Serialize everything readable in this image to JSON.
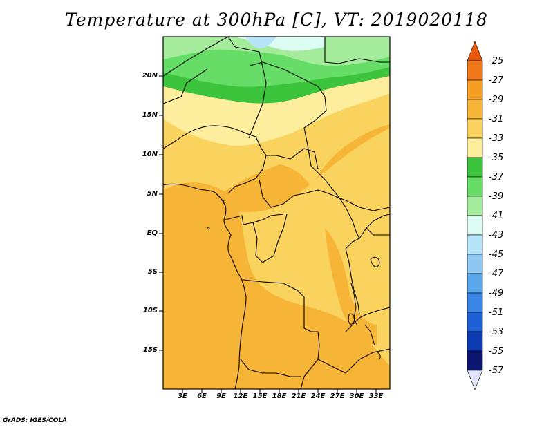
{
  "title": "Temperature at 300hPa [C], VT: 2019020118",
  "credit": "GrADS: IGES/COLA",
  "map": {
    "variable": "Temperature",
    "level": "300hPa",
    "units": "C",
    "valid_time": "2019020118",
    "lat_labels": [
      "20N",
      "15N",
      "10N",
      "5N",
      "EQ",
      "5S",
      "10S",
      "15S"
    ],
    "lon_labels": [
      "3E",
      "6E",
      "9E",
      "12E",
      "15E",
      "18E",
      "21E",
      "24E",
      "27E",
      "30E",
      "33E"
    ]
  },
  "colorbar": {
    "labels": [
      "-25",
      "-27",
      "-29",
      "-31",
      "-33",
      "-35",
      "-37",
      "-39",
      "-41",
      "-43",
      "-45",
      "-47",
      "-49",
      "-51",
      "-53",
      "-55",
      "-57"
    ],
    "colors": [
      "#e8590c",
      "#f07818",
      "#f59e22",
      "#f7b538",
      "#fad35f",
      "#fcee9c",
      "#3cc43c",
      "#66dd66",
      "#a4ec9c",
      "#dcfcf4",
      "#b6e4f8",
      "#8ec8f2",
      "#5aa8ec",
      "#3a86e6",
      "#1d60d6",
      "#0d3cb2",
      "#0a1570",
      "#e0e2f8"
    ]
  }
}
